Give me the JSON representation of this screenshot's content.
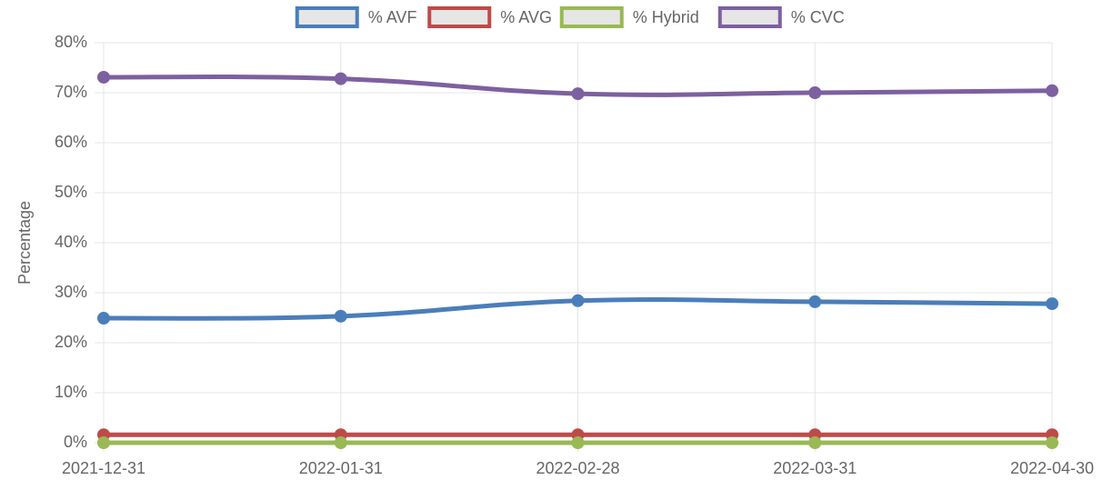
{
  "chart_data": {
    "type": "line",
    "y_label": "Percentage",
    "categories": [
      "2021-12-31",
      "2022-01-31",
      "2022-02-28",
      "2022-03-31",
      "2022-04-30"
    ],
    "series": [
      {
        "name": "% AVF",
        "color": "#4a7ebb",
        "values": [
          24.9,
          25.3,
          28.4,
          28.2,
          27.8
        ]
      },
      {
        "name": "% AVG",
        "color": "#be4b48",
        "values": [
          1.6,
          1.6,
          1.6,
          1.6,
          1.6
        ]
      },
      {
        "name": "% Hybrid",
        "color": "#98b954",
        "values": [
          0,
          0,
          0,
          0,
          0
        ]
      },
      {
        "name": "% CVC",
        "color": "#7d60a0",
        "values": [
          73.1,
          72.8,
          69.8,
          70.0,
          70.4
        ]
      }
    ],
    "ylim": [
      0,
      80
    ],
    "yticks": [
      {
        "value": 0,
        "label": "0%"
      },
      {
        "value": 10,
        "label": "10%"
      },
      {
        "value": 20,
        "label": "20%"
      },
      {
        "value": 30,
        "label": "30%"
      },
      {
        "value": 40,
        "label": "40%"
      },
      {
        "value": 50,
        "label": "50%"
      },
      {
        "value": 60,
        "label": "60%"
      },
      {
        "value": 70,
        "label": "70%"
      },
      {
        "value": 80,
        "label": "80%"
      }
    ],
    "grid": true,
    "legend": "top"
  }
}
